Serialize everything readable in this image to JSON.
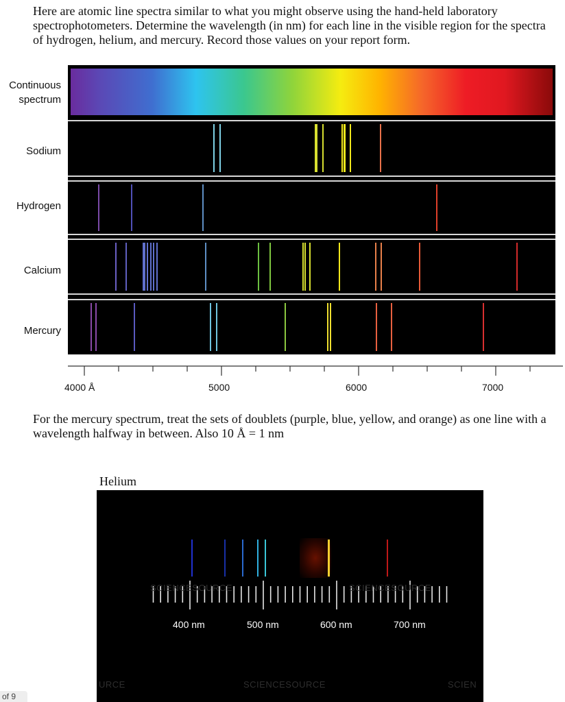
{
  "intro_text": "Here are atomic line spectra similar to what you might observe using the hand-held laboratory spectrophotometers. Determine the wavelength (in nm) for each line in the visible region for the spectra of hydrogen, helium, and mercury. Record those values on your report form.",
  "spectra": {
    "continuous_label_1": "Continuous",
    "continuous_label_2": "spectrum",
    "sodium_label": "Sodium",
    "hydrogen_label": "Hydrogen",
    "calcium_label": "Calcium",
    "mercury_label": "Mercury",
    "axis_labels": [
      "4000 Å",
      "5000",
      "6000",
      "7000"
    ],
    "lines": {
      "sodium": [
        {
          "wl": 4940,
          "color": "#7fd2e6"
        },
        {
          "wl": 4983,
          "color": "#7fd2e6"
        },
        {
          "wl": 5682,
          "color": "#d8e030"
        },
        {
          "wl": 5688,
          "color": "#d8e030"
        },
        {
          "wl": 5737,
          "color": "#d8e030"
        },
        {
          "wl": 5876,
          "color": "#f2e81c"
        },
        {
          "wl": 5890,
          "color": "#f2e81c"
        },
        {
          "wl": 5896,
          "color": "#f2e81c"
        },
        {
          "wl": 5935,
          "color": "#f2e81c"
        },
        {
          "wl": 6154,
          "color": "#e8714a"
        }
      ],
      "hydrogen": [
        {
          "wl": 4102,
          "color": "#7a4aa8"
        },
        {
          "wl": 4340,
          "color": "#5050b8"
        },
        {
          "wl": 4861,
          "color": "#5f8fc4"
        },
        {
          "wl": 6563,
          "color": "#e0402a"
        }
      ],
      "calcium": [
        {
          "wl": 4226,
          "color": "#6a60c4"
        },
        {
          "wl": 4302,
          "color": "#6060c0"
        },
        {
          "wl": 4425,
          "color": "#6070cc"
        },
        {
          "wl": 4435,
          "color": "#6070cc"
        },
        {
          "wl": 4455,
          "color": "#6070cc"
        },
        {
          "wl": 4478,
          "color": "#6070cc"
        },
        {
          "wl": 4499,
          "color": "#6070cc"
        },
        {
          "wl": 4526,
          "color": "#6070cc"
        },
        {
          "wl": 4878,
          "color": "#5f8fc4"
        },
        {
          "wl": 5265,
          "color": "#6cc040"
        },
        {
          "wl": 5349,
          "color": "#80c840"
        },
        {
          "wl": 5589,
          "color": "#d8e030"
        },
        {
          "wl": 5603,
          "color": "#d8e030"
        },
        {
          "wl": 5640,
          "color": "#d8e030"
        },
        {
          "wl": 5857,
          "color": "#f2e81c"
        },
        {
          "wl": 6122,
          "color": "#e8804a"
        },
        {
          "wl": 6162,
          "color": "#e8804a"
        },
        {
          "wl": 6439,
          "color": "#e85a38"
        },
        {
          "wl": 7148,
          "color": "#d42a2a"
        }
      ],
      "mercury": [
        {
          "wl": 4047,
          "color": "#8a4aa8"
        },
        {
          "wl": 4078,
          "color": "#8a4aa8"
        },
        {
          "wl": 4358,
          "color": "#5a5ac0"
        },
        {
          "wl": 4916,
          "color": "#6fc4e0"
        },
        {
          "wl": 4960,
          "color": "#6fc4e0"
        },
        {
          "wl": 5461,
          "color": "#8cc840"
        },
        {
          "wl": 5770,
          "color": "#f0e030"
        },
        {
          "wl": 5791,
          "color": "#f0e030"
        },
        {
          "wl": 6123,
          "color": "#e86040"
        },
        {
          "wl": 6234,
          "color": "#e86040"
        },
        {
          "wl": 6907,
          "color": "#d83030"
        }
      ]
    }
  },
  "note_text": "For the mercury spectrum, treat the sets of doublets (purple, blue, yellow, and orange) as one line with a wavelength halfway in between.  Also 10 Å = 1 nm",
  "helium": {
    "title": "Helium",
    "scale_labels": [
      "400 nm",
      "500 nm",
      "600 nm",
      "700 nm"
    ],
    "watermark_mid": "SCIENCESOURCE",
    "watermark_left": "URCE",
    "watermark_right": "SCIEN",
    "watermark_scale_left": "SCIENCESOURCE",
    "watermark_scale_right": "SCIENCESOURCE",
    "emission_lines": [
      {
        "nm": 402,
        "color": "#2030d0"
      },
      {
        "nm": 447,
        "color": "#1830a8"
      },
      {
        "nm": 471,
        "color": "#2a6ad0"
      },
      {
        "nm": 492,
        "color": "#30b0e0"
      },
      {
        "nm": 502,
        "color": "#3ac8d8"
      },
      {
        "nm": 588,
        "color": "#ffd030"
      },
      {
        "nm": 668,
        "color": "#c01818"
      }
    ]
  },
  "page_indicator": "of 9"
}
